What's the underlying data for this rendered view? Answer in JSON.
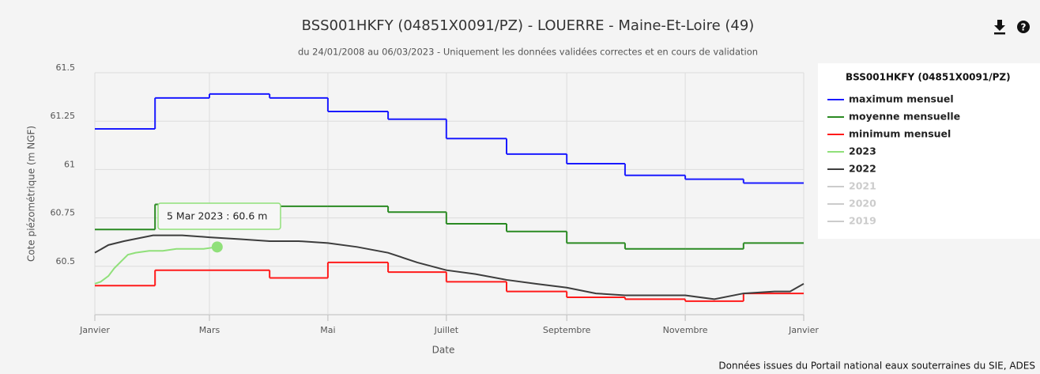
{
  "chart_data": {
    "type": "line",
    "title": "BSS001HKFY (04851X0091/PZ) - LOUERRE - Maine-Et-Loire (49)",
    "subtitle": "du 24/01/2008 au 06/03/2023 - Uniquement les données validées correctes et en cours de validation",
    "ylabel": "Cote piézométrique (m NGF)",
    "xlabel": "Date",
    "credit": "Données issues du Portail national eaux souterraines du SIE, ADES",
    "legend_title": "BSS001HKFY (04851X0091/PZ)",
    "tooltip": "5 Mar 2023 : 60.6 m",
    "xlim": [
      0,
      365
    ],
    "xticks": [
      {
        "value": 0,
        "label": "Janvier"
      },
      {
        "value": 59,
        "label": "Mars"
      },
      {
        "value": 120,
        "label": "Mai"
      },
      {
        "value": 181,
        "label": "Juillet"
      },
      {
        "value": 243,
        "label": "Septembre"
      },
      {
        "value": 304,
        "label": "Novembre"
      },
      {
        "value": 365,
        "label": "Janvier"
      }
    ],
    "ylim": [
      60.25,
      61.5
    ],
    "yticks": [
      60.5,
      60.75,
      61,
      61.25,
      61.5
    ],
    "grid": true,
    "series": [
      {
        "name": "maximum mensuel",
        "color": "#1a1aff",
        "step": true,
        "visible": true,
        "x": [
          0,
          31,
          59,
          90,
          120,
          151,
          181,
          212,
          243,
          273,
          304,
          334
        ],
        "values": [
          61.21,
          61.37,
          61.39,
          61.37,
          61.3,
          61.26,
          61.16,
          61.08,
          61.03,
          60.97,
          60.95,
          60.93
        ]
      },
      {
        "name": "moyenne mensuelle",
        "color": "#2a8a22",
        "step": true,
        "visible": true,
        "x": [
          0,
          31,
          59,
          90,
          120,
          151,
          181,
          212,
          243,
          273,
          304,
          334
        ],
        "values": [
          60.69,
          60.82,
          60.82,
          60.81,
          60.81,
          60.78,
          60.72,
          60.68,
          60.62,
          60.59,
          60.59,
          60.62
        ]
      },
      {
        "name": "minimum mensuel",
        "color": "#ff1a1a",
        "step": true,
        "visible": true,
        "x": [
          0,
          31,
          59,
          90,
          120,
          151,
          181,
          212,
          243,
          273,
          304,
          334
        ],
        "values": [
          60.4,
          60.48,
          60.48,
          60.44,
          60.52,
          60.47,
          60.42,
          60.37,
          60.34,
          60.33,
          60.32,
          60.36
        ]
      },
      {
        "name": "2023",
        "color": "#90e07a",
        "step": false,
        "visible": true,
        "x": [
          0,
          3,
          7,
          10,
          14,
          17,
          21,
          28,
          35,
          42,
          49,
          56,
          63
        ],
        "values": [
          60.41,
          60.42,
          60.45,
          60.49,
          60.53,
          60.56,
          60.57,
          60.58,
          60.58,
          60.59,
          60.59,
          60.59,
          60.6
        ]
      },
      {
        "name": "2022",
        "color": "#3d3d3d",
        "step": false,
        "visible": true,
        "x": [
          0,
          7,
          15,
          30,
          45,
          59,
          75,
          90,
          105,
          120,
          135,
          151,
          166,
          181,
          196,
          212,
          227,
          243,
          258,
          273,
          288,
          304,
          319,
          334,
          350,
          358,
          365
        ],
        "values": [
          60.57,
          60.61,
          60.63,
          60.66,
          60.66,
          60.65,
          60.64,
          60.63,
          60.63,
          60.62,
          60.6,
          60.57,
          60.52,
          60.48,
          60.46,
          60.43,
          60.41,
          60.39,
          60.36,
          60.35,
          60.35,
          60.35,
          60.33,
          60.36,
          60.37,
          60.37,
          60.41
        ]
      },
      {
        "name": "2021",
        "color": "#cccccc",
        "step": false,
        "visible": false,
        "x": [],
        "values": []
      },
      {
        "name": "2020",
        "color": "#cccccc",
        "step": false,
        "visible": false,
        "x": [],
        "values": []
      },
      {
        "name": "2019",
        "color": "#cccccc",
        "step": false,
        "visible": false,
        "x": [],
        "values": []
      }
    ]
  }
}
